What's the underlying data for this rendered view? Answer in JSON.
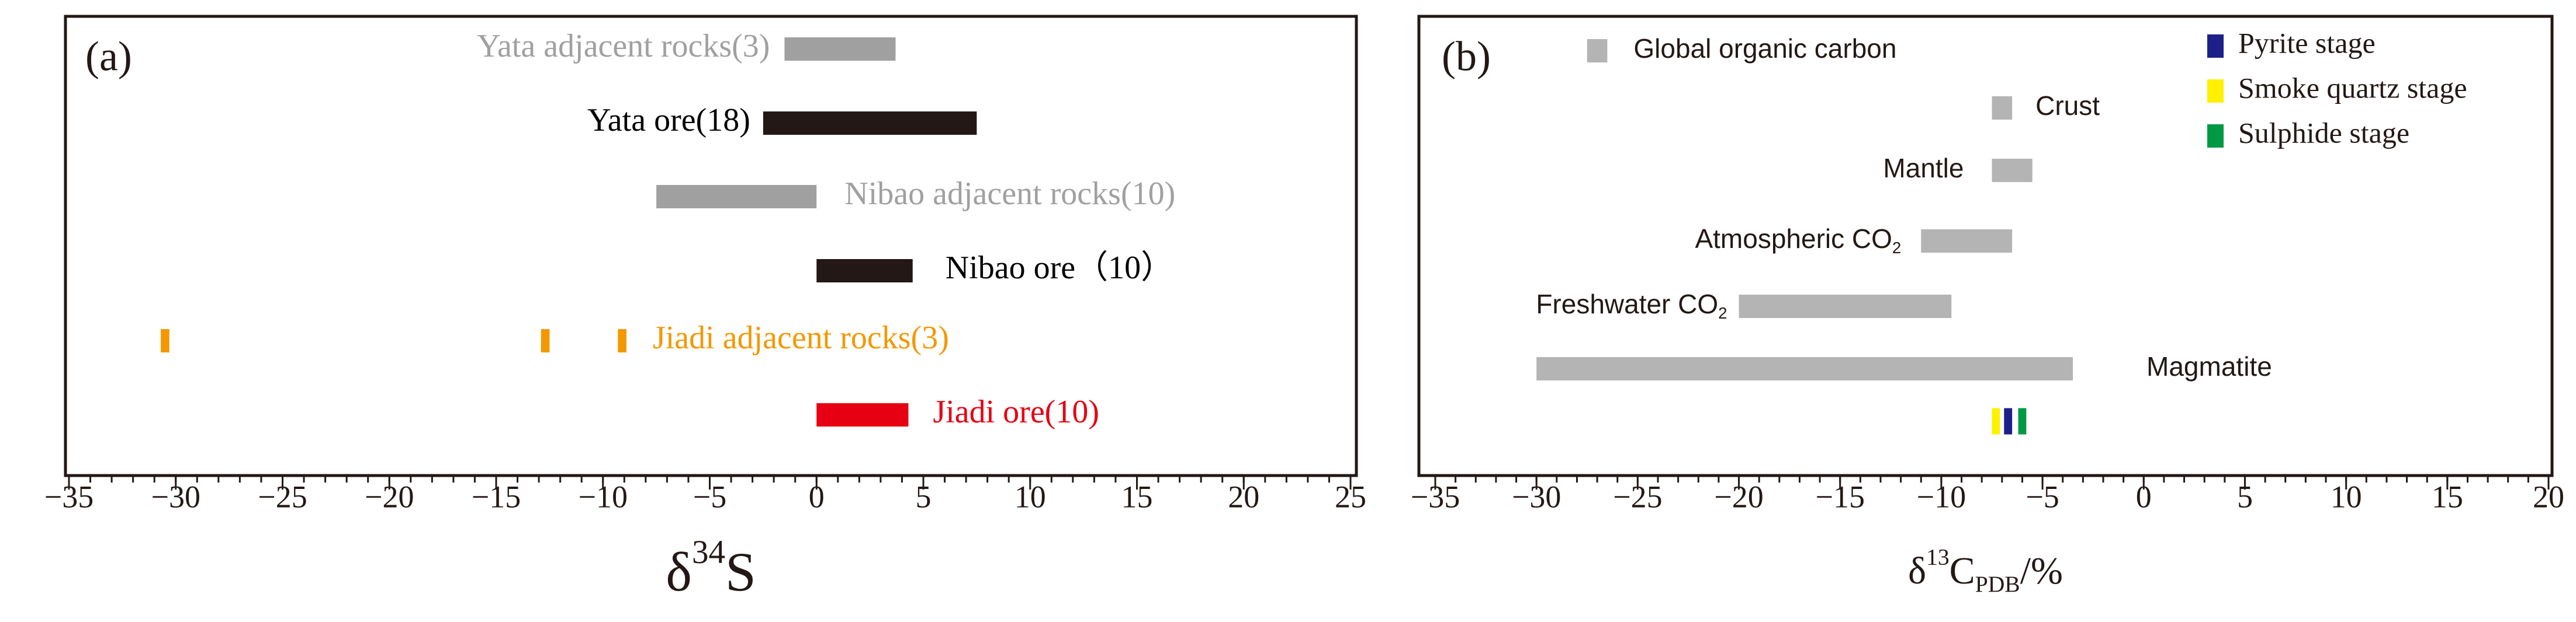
{
  "chart_data": [
    {
      "type": "range_bar",
      "panel_label": "(a)",
      "xlabel": {
        "prefix": "δ",
        "superscript": "34",
        "text": "S"
      },
      "xlim": [
        -35,
        25
      ],
      "xticks": [
        {
          "value": -35,
          "label": "−35"
        },
        {
          "value": -30,
          "label": "−30"
        },
        {
          "value": -25,
          "label": "−25"
        },
        {
          "value": -20,
          "label": "−20"
        },
        {
          "value": -15,
          "label": "−15"
        },
        {
          "value": -10,
          "label": "−10"
        },
        {
          "value": -5,
          "label": "−5"
        },
        0,
        5,
        10,
        15,
        20,
        25
      ],
      "minor_tick_step": 1,
      "rows": [
        {
          "label": {
            "text": "Yata adjacent rocks(3)"
          },
          "color": "#a0a0a0",
          "ranges": [
            [
              -1.5,
              3.7
            ]
          ]
        },
        {
          "label": {
            "text": "Yata ore(18)"
          },
          "color": "#231815",
          "ranges": [
            [
              -2.5,
              7.5
            ]
          ]
        },
        {
          "label": {
            "text": "Nibao adjacent rocks(10)"
          },
          "color": "#a0a0a0",
          "ranges": [
            [
              -7.5,
              0
            ]
          ]
        },
        {
          "label": {
            "text": "Nibao ore（10）"
          },
          "color": "#231815",
          "ranges": [
            [
              0,
              4.5
            ]
          ]
        },
        {
          "label": {
            "text": "Jiadi adjacent rocks(3)"
          },
          "color": "#f39800",
          "ranges": [
            [
              -30.7,
              -30.3
            ],
            [
              -12.9,
              -12.5
            ],
            [
              -9.3,
              -8.9
            ]
          ]
        },
        {
          "label": {
            "text": "Jiadi ore(10)"
          },
          "color": "#e60012",
          "ranges": [
            [
              0,
              4.3
            ]
          ]
        }
      ]
    },
    {
      "type": "range_bar",
      "panel_label": "(b)",
      "xlabel": {
        "prefix": "δ",
        "superscript": "13",
        "text": "C",
        "subscript": "PDB",
        "suffix": "/%"
      },
      "xlim": [
        -35,
        20
      ],
      "xticks": [
        {
          "value": -35,
          "label": "−35"
        },
        {
          "value": -30,
          "label": "−30"
        },
        {
          "value": -25,
          "label": "−25"
        },
        {
          "value": -20,
          "label": "−20"
        },
        {
          "value": -15,
          "label": "−15"
        },
        {
          "value": -10,
          "label": "−10"
        },
        {
          "value": -5,
          "label": "−5"
        },
        0,
        5,
        10,
        15,
        20
      ],
      "minor_tick_step": 1,
      "rows": [
        {
          "label": {
            "text": "Global organic carbon"
          },
          "color": "#b4b4b4",
          "ranges": [
            [
              -27.5,
              -26.5
            ]
          ]
        },
        {
          "label": {
            "text": "Crust"
          },
          "color": "#b4b4b4",
          "ranges": [
            [
              -7.5,
              -6.5
            ]
          ]
        },
        {
          "label": {
            "text": "Mantle"
          },
          "color": "#b4b4b4",
          "ranges": [
            [
              -7.5,
              -5.5
            ]
          ]
        },
        {
          "label": {
            "text": "Atmospheric CO",
            "subscript": "2"
          },
          "color": "#b4b4b4",
          "ranges": [
            [
              -11,
              -6.5
            ]
          ]
        },
        {
          "label": {
            "text": "Freshwater CO",
            "subscript": "2"
          },
          "color": "#b4b4b4",
          "ranges": [
            [
              -20,
              -9.5
            ]
          ]
        },
        {
          "label": {
            "text": "Magmatite"
          },
          "color": "#b4b4b4",
          "ranges": [
            [
              -30,
              -3.5
            ]
          ]
        }
      ],
      "legend": "upper right",
      "series": [
        {
          "name": "Pyrite stage",
          "color": "#1d2088",
          "ranges": [
            [
              -6.9,
              -6.5
            ]
          ]
        },
        {
          "name": "Smoke quartz stage",
          "color": "#fff100",
          "ranges": [
            [
              -7.5,
              -7.1
            ]
          ]
        },
        {
          "name": "Sulphide stage",
          "color": "#009944",
          "ranges": [
            [
              -6.2,
              -5.8
            ]
          ]
        }
      ]
    }
  ]
}
